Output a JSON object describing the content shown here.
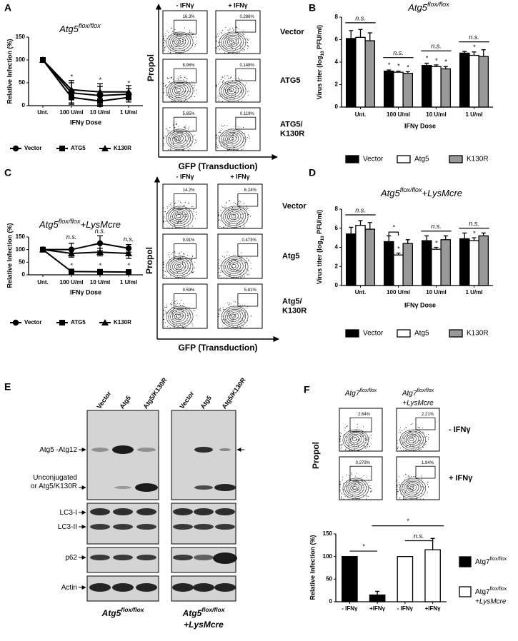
{
  "panel_labels": [
    "A",
    "B",
    "C",
    "D",
    "E",
    "F"
  ],
  "chart_data": [
    {
      "type": "line",
      "title": {
        "text": "Atg5",
        "sup": "flox/flox"
      },
      "y_label": "Relative Infection (%)",
      "x_label": "IFNγ Dose",
      "categories": [
        "Unt.",
        "100 U/ml",
        "10 U/ml",
        "1 U/ml"
      ],
      "series": [
        {
          "name": "Vector",
          "color": "#000000",
          "marker": "circle",
          "values": [
            100,
            28,
            22,
            25
          ],
          "errors": [
            0,
            22,
            20,
            12
          ]
        },
        {
          "name": "ATG5",
          "color": "#000000",
          "marker": "square",
          "values": [
            100,
            18,
            10,
            18
          ],
          "errors": [
            0,
            15,
            12,
            10
          ]
        },
        {
          "name": "K130R",
          "color": "#000000",
          "marker": "triangle",
          "values": [
            100,
            35,
            30,
            30
          ],
          "errors": [
            0,
            20,
            18,
            14
          ]
        }
      ],
      "ylim": [
        0,
        150
      ],
      "yticks": [
        0,
        50,
        100,
        150
      ],
      "legend": "bottom",
      "annotations": [
        "*",
        "*",
        "*"
      ]
    },
    {
      "type": "bar",
      "title": {
        "text": "Atg5",
        "sup": "flox/flox"
      },
      "y_label": {
        "text": "Virus titer (log",
        "sub": "10",
        "after": " PFU/ml)"
      },
      "x_label": "IFNγ Dose",
      "categories": [
        "Unt.",
        "100 U/ml",
        "10 U/ml",
        "1 U/ml"
      ],
      "series": [
        {
          "name": "Vector",
          "color": "#000000",
          "values": [
            6.1,
            3.2,
            3.7,
            4.8
          ],
          "errors": [
            0.7,
            0.1,
            0.2,
            0.15
          ]
        },
        {
          "name": "Atg5",
          "color": "#ffffff",
          "values": [
            6.2,
            3.1,
            3.6,
            4.6
          ],
          "errors": [
            0.7,
            0.1,
            0.15,
            0.3
          ]
        },
        {
          "name": "K130R",
          "color": "#999999",
          "values": [
            5.9,
            3.0,
            3.4,
            4.5
          ],
          "errors": [
            0.7,
            0.15,
            0.2,
            0.6
          ]
        }
      ],
      "ylim": [
        0,
        8
      ],
      "yticks": [
        0,
        2,
        4,
        6,
        8
      ],
      "legend": "bottom",
      "annotations": [
        "n.s.",
        "n.s.",
        "n.s.",
        "n.s.",
        "*",
        "*",
        "*",
        "*",
        "*",
        "*",
        "*"
      ]
    },
    {
      "type": "line",
      "title": {
        "text": "Atg5",
        "sup": "flox/flox",
        "after": "+LysMcre"
      },
      "y_label": "Relative Infection (%)",
      "x_label": "IFNγ Dose",
      "categories": [
        "Unt.",
        "100 U/ml",
        "10 U/ml",
        "1 U/ml"
      ],
      "series": [
        {
          "name": "Vector",
          "color": "#000000",
          "marker": "circle",
          "values": [
            100,
            100,
            125,
            105
          ],
          "errors": [
            0,
            25,
            30,
            15
          ]
        },
        {
          "name": "ATG5",
          "color": "#000000",
          "marker": "square",
          "values": [
            100,
            13,
            12,
            11
          ],
          "errors": [
            0,
            3,
            3,
            3
          ]
        },
        {
          "name": "K130R",
          "color": "#000000",
          "marker": "triangle",
          "values": [
            100,
            85,
            90,
            85
          ],
          "errors": [
            0,
            15,
            15,
            20
          ]
        }
      ],
      "ylim": [
        0,
        150
      ],
      "yticks": [
        0,
        50,
        100,
        150
      ],
      "legend": "bottom",
      "annotations": [
        "n.s.",
        "n.s.",
        "n.s.",
        "*",
        "*",
        "*"
      ]
    },
    {
      "type": "bar",
      "title": {
        "text": "Atg5",
        "sup": "flox/flox",
        "after": "+LysMcre"
      },
      "y_label": {
        "text": "Virus titer (log",
        "sub": "10",
        "after": " PFU/ml)"
      },
      "x_label": "IFNγ Dose",
      "categories": [
        "Unt.",
        "100 U/ml",
        "10 U/ml",
        "1 U/ml"
      ],
      "series": [
        {
          "name": "Vector",
          "color": "#000000",
          "values": [
            5.4,
            4.6,
            4.7,
            4.9
          ],
          "errors": [
            0.7,
            0.6,
            0.5,
            0.6
          ]
        },
        {
          "name": "Atg5",
          "color": "#ffffff",
          "values": [
            6.3,
            3.2,
            3.8,
            4.7
          ],
          "errors": [
            0.5,
            0.2,
            0.2,
            0.3
          ]
        },
        {
          "name": "K130R",
          "color": "#999999",
          "values": [
            5.9,
            4.4,
            4.8,
            5.2
          ],
          "errors": [
            0.7,
            0.4,
            0.4,
            0.3
          ]
        }
      ],
      "ylim": [
        0,
        8
      ],
      "yticks": [
        0,
        2,
        4,
        6,
        8
      ],
      "legend": "bottom",
      "annotations": [
        "n.s.",
        "*",
        "n.s.",
        "n.s.",
        "*",
        "*",
        "*"
      ]
    },
    {
      "type": "bar",
      "y_label": "Relative Infection (%)",
      "categories": [
        "- IFNγ",
        "+IFNγ",
        "- IFNγ",
        "+IFNγ"
      ],
      "series": [
        {
          "name": {
            "text": "Atg7",
            "sup": "flox/flox"
          },
          "color": "#000000",
          "values": [
            100,
            15,
            null,
            null
          ],
          "errors": [
            0,
            8,
            null,
            null
          ]
        },
        {
          "name": {
            "text": "Atg7",
            "sup": "flox/flox",
            "line2": "+LysMcre"
          },
          "color": "#ffffff",
          "values": [
            null,
            null,
            100,
            115
          ],
          "errors": [
            null,
            null,
            0,
            25
          ]
        }
      ],
      "ylim": [
        0,
        150
      ],
      "yticks": [
        0,
        50,
        100,
        150
      ],
      "legend": "right",
      "annotations": [
        "*",
        "*",
        "n.s."
      ]
    }
  ],
  "flow_A": {
    "columns": [
      "- IFNγ",
      "+ IFNγ"
    ],
    "rows": [
      [
        "Vector"
      ],
      [
        "ATG5"
      ],
      [
        "ATG5/",
        "K130R"
      ]
    ],
    "percentages": [
      [
        "16.3%",
        "0.286%"
      ],
      [
        "8.96%",
        "0.148%"
      ],
      [
        "5.85%",
        "0.119%"
      ]
    ],
    "y_label": "Propol",
    "x_label": "GFP (Transduction)"
  },
  "flow_C": {
    "columns": [
      "- IFNγ",
      "+ IFNγ"
    ],
    "rows": [
      [
        "Vector"
      ],
      [
        "Atg5"
      ],
      [
        "Atg5/",
        "K130R"
      ]
    ],
    "percentages": [
      [
        "14.2%",
        "6.24%"
      ],
      [
        "9.91%",
        "0.473%"
      ],
      [
        "9.59%",
        "5.81%"
      ]
    ],
    "y_label": "Propol",
    "x_label": "GFP (Transduction)"
  },
  "flow_F": {
    "columns": [
      {
        "text": "Atg7",
        "sup": "flox/flox"
      },
      {
        "text": "Atg7",
        "sup": "flox/flox",
        "line2": "+LysMcre"
      }
    ],
    "rows": [
      [
        "- IFNγ"
      ],
      [
        "+ IFNγ"
      ]
    ],
    "percentages": [
      [
        "2.64%",
        "2.21%"
      ],
      [
        "0.279%",
        "1.94%"
      ]
    ],
    "y_label": "Propol"
  },
  "blot": {
    "groups": [
      {
        "lanes": [
          "Vector",
          "Atg5",
          "Atg5/K130R"
        ],
        "caption": {
          "text": "Atg5",
          "sup": "flox/flox"
        }
      },
      {
        "lanes": [
          "Vector",
          "Atg5",
          "Atg5/K130R"
        ],
        "caption": {
          "text": "Atg5",
          "sup": "flox/flox",
          "line2": "+LysMcre"
        }
      }
    ],
    "band_labels": [
      [
        "Atg5 -Atg12"
      ],
      [
        "Unconjugated",
        "or Atg5/K130R"
      ],
      [
        "LC3-I"
      ],
      [
        "LC3-II"
      ],
      [
        "p62"
      ],
      [
        "Actin"
      ]
    ]
  }
}
